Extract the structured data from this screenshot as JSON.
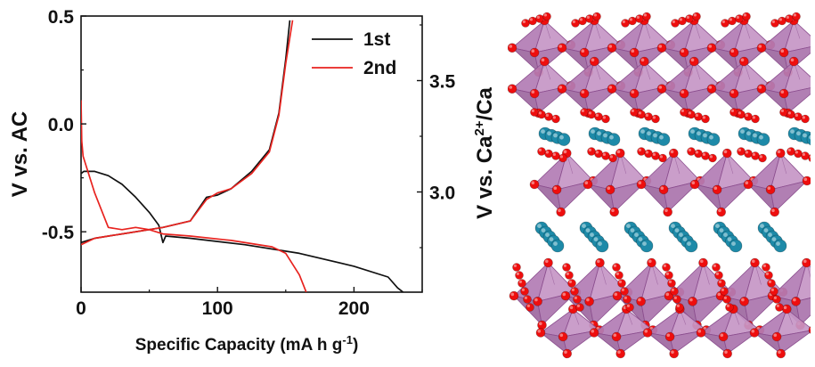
{
  "chart_data": {
    "type": "line",
    "xlabel": "Specific Capacity (mA h g",
    "xlabel_sup": "-1",
    "xlabel_end": ")",
    "ylabel": "V vs. AC",
    "y2label_main": "V vs. Ca",
    "y2label_sup": "2+",
    "y2label_end": "/Ca",
    "xlim": [
      0,
      250
    ],
    "ylim": [
      -0.78,
      0.5
    ],
    "y2lim": [
      2.55,
      3.79
    ],
    "xticks": [
      0,
      100,
      200
    ],
    "xtick_labels": [
      "0",
      "100",
      "200"
    ],
    "yticks": [
      0.5,
      0.0,
      -0.5
    ],
    "ytick_labels": [
      "0.5",
      "0.0",
      "-0.5"
    ],
    "y2ticks": [
      3.5,
      3.0
    ],
    "y2tick_labels": [
      "3.5",
      "3.0"
    ],
    "legend_position": "top-right",
    "series": [
      {
        "name": "1st",
        "color": "#111111",
        "charge": {
          "x": [
            0,
            10,
            30,
            60,
            80,
            92,
            100,
            110,
            125,
            138,
            145,
            150,
            153
          ],
          "y": [
            -0.55,
            -0.53,
            -0.51,
            -0.48,
            -0.45,
            -0.34,
            -0.33,
            -0.3,
            -0.22,
            -0.12,
            0.05,
            0.3,
            0.48
          ]
        },
        "discharge": {
          "x": [
            0,
            2,
            10,
            20,
            30,
            40,
            50,
            57,
            60,
            62,
            80,
            120,
            160,
            200,
            225,
            232,
            236
          ],
          "y": [
            -0.23,
            -0.22,
            -0.22,
            -0.24,
            -0.28,
            -0.34,
            -0.41,
            -0.47,
            -0.55,
            -0.52,
            -0.53,
            -0.56,
            -0.6,
            -0.66,
            -0.71,
            -0.76,
            -0.78
          ]
        }
      },
      {
        "name": "2nd",
        "color": "#e8231f",
        "charge": {
          "x": [
            0,
            10,
            30,
            60,
            80,
            92,
            100,
            110,
            125,
            138,
            145,
            150,
            155
          ],
          "y": [
            -0.56,
            -0.53,
            -0.51,
            -0.48,
            -0.45,
            -0.35,
            -0.32,
            -0.3,
            -0.23,
            -0.13,
            0.04,
            0.28,
            0.48
          ]
        },
        "discharge": {
          "x": [
            0,
            0.5,
            1.5,
            4,
            10,
            20,
            30,
            40,
            50,
            60,
            80,
            110,
            140,
            150,
            160,
            165
          ],
          "y": [
            0.11,
            -0.08,
            -0.15,
            -0.2,
            -0.32,
            -0.48,
            -0.49,
            -0.48,
            -0.49,
            -0.51,
            -0.52,
            -0.54,
            -0.57,
            -0.6,
            -0.7,
            -0.78
          ]
        }
      }
    ]
  },
  "structure": {
    "icon": "layered-octahedral-crystal-structure",
    "colors": {
      "octahedron_face": "#b27cb4",
      "octahedron_edge": "#8b4e8e",
      "oxygen": "#ee0e0e",
      "calcium": "#1d8aa8"
    }
  }
}
